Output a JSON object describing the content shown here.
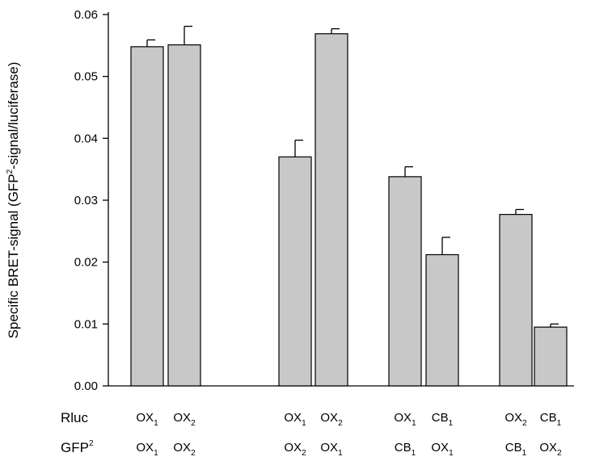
{
  "chart_data": {
    "type": "bar",
    "title": "",
    "xlabel": "",
    "ylabel": {
      "pre": "Specific BRET-signal (GFP",
      "sup": "2",
      "post": "-signal/luciferase)"
    },
    "ylim": [
      0,
      0.06
    ],
    "yticks": [
      {
        "value": 0,
        "label": "0.00"
      },
      {
        "value": 0.01,
        "label": "0.01"
      },
      {
        "value": 0.02,
        "label": "0.02"
      },
      {
        "value": 0.03,
        "label": "0.03"
      },
      {
        "value": 0.04,
        "label": "0.04"
      },
      {
        "value": 0.05,
        "label": "0.05"
      },
      {
        "value": 0.06,
        "label": "0.06"
      }
    ],
    "bar_color": "#c8c8c8",
    "row_labels": {
      "rluc": "Rluc",
      "gfp": {
        "base": "GFP",
        "sup": "2"
      }
    },
    "bars": [
      {
        "group": 0,
        "value": 0.0548,
        "error": 0.0011,
        "rluc": {
          "base": "OX",
          "sub": "1"
        },
        "gfp": {
          "base": "OX",
          "sub": "1"
        }
      },
      {
        "group": 1,
        "value": 0.0551,
        "error": 0.003,
        "rluc": {
          "base": "OX",
          "sub": "2"
        },
        "gfp": {
          "base": "OX",
          "sub": "2"
        }
      },
      {
        "group": 2,
        "value": 0.037,
        "error": 0.0027,
        "rluc": {
          "base": "OX",
          "sub": "1"
        },
        "gfp": {
          "base": "OX",
          "sub": "2"
        }
      },
      {
        "group": 2,
        "value": 0.0569,
        "error": 0.0008,
        "rluc": {
          "base": "OX",
          "sub": "2"
        },
        "gfp": {
          "base": "OX",
          "sub": "1"
        }
      },
      {
        "group": 3,
        "value": 0.0338,
        "error": 0.0016,
        "rluc": {
          "base": "OX",
          "sub": "1"
        },
        "gfp": {
          "base": "CB",
          "sub": "1"
        }
      },
      {
        "group": 3,
        "value": 0.0212,
        "error": 0.0028,
        "rluc": {
          "base": "CB",
          "sub": "1"
        },
        "gfp": {
          "base": "OX",
          "sub": "1"
        }
      },
      {
        "group": 4,
        "value": 0.0277,
        "error": 0.0008,
        "rluc": {
          "base": "OX",
          "sub": "2"
        },
        "gfp": {
          "base": "CB",
          "sub": "1"
        }
      },
      {
        "group": 4,
        "value": 0.0095,
        "error": 0.0005,
        "rluc": {
          "base": "CB",
          "sub": "1"
        },
        "gfp": {
          "base": "OX",
          "sub": "2"
        }
      }
    ]
  }
}
